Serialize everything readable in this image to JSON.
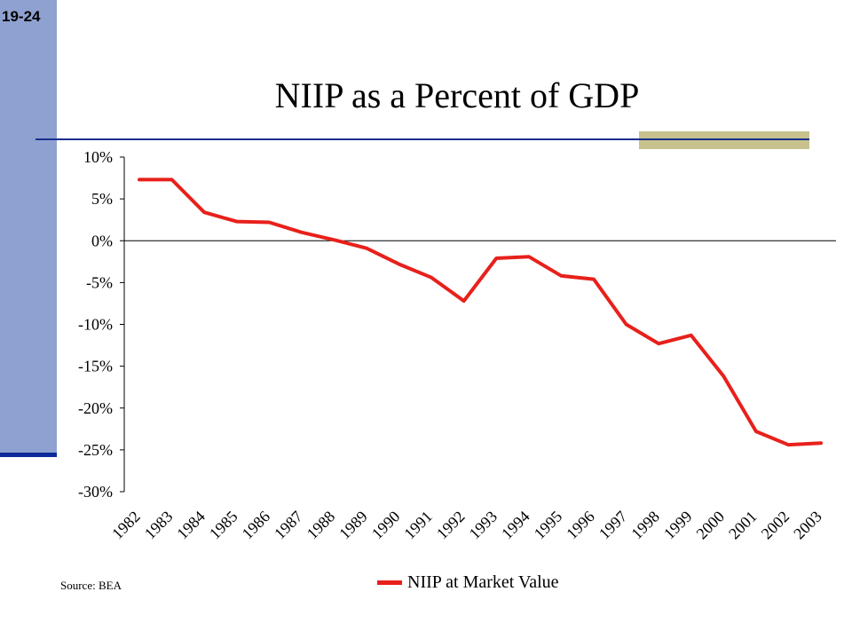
{
  "slide_number": "19-24",
  "source_note": "Source: BEA",
  "colors": {
    "sidebar": "#8fa1d0",
    "rule": "#1a2f8f",
    "accent": "#c7c28d",
    "series": "#e8201b"
  },
  "chart_data": {
    "type": "line",
    "title": "NIIP as a Percent of GDP",
    "xlabel": "",
    "ylabel": "",
    "x": [
      "1982",
      "1983",
      "1984",
      "1985",
      "1986",
      "1987",
      "1988",
      "1989",
      "1990",
      "1991",
      "1992",
      "1993",
      "1994",
      "1995",
      "1996",
      "1997",
      "1998",
      "1999",
      "2000",
      "2001",
      "2002",
      "2003"
    ],
    "yticks": [
      "10%",
      "5%",
      "0%",
      "-5%",
      "-10%",
      "-15%",
      "-20%",
      "-25%",
      "-30%"
    ],
    "ylim": [
      -30,
      10
    ],
    "series": [
      {
        "name": "NIIP at Market Value",
        "values": [
          7.3,
          7.3,
          3.4,
          2.3,
          2.2,
          1.0,
          0.1,
          -0.9,
          -2.8,
          -4.4,
          -7.2,
          -2.1,
          -1.9,
          -4.2,
          -4.6,
          -10.0,
          -12.3,
          -11.3,
          -16.2,
          -22.8,
          -24.4,
          -24.2
        ]
      }
    ],
    "legend": "bottom-center",
    "grid": false
  }
}
